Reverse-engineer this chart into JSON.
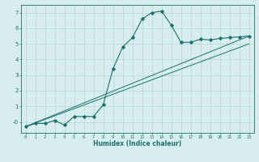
{
  "xlabel": "Humidex (Indice chaleur)",
  "ylabel": "",
  "bg_color": "#d8eeee",
  "grid_color": "#b8d8d8",
  "line_color": "#1a7070",
  "xlim": [
    -0.5,
    23.5
  ],
  "ylim": [
    -0.7,
    7.5
  ],
  "xticks": [
    0,
    1,
    2,
    3,
    4,
    5,
    6,
    7,
    8,
    9,
    10,
    11,
    12,
    13,
    14,
    15,
    16,
    17,
    18,
    19,
    20,
    21,
    22,
    23
  ],
  "yticks": [
    0,
    1,
    2,
    3,
    4,
    5,
    6,
    7
  ],
  "curve1_x": [
    0,
    1,
    2,
    3,
    4,
    5,
    6,
    7,
    8,
    9,
    10,
    11,
    12,
    13,
    14,
    15,
    16,
    17,
    18,
    19,
    20,
    21,
    22,
    23
  ],
  "curve1_y": [
    -0.3,
    -0.1,
    -0.1,
    0.1,
    -0.2,
    0.35,
    0.35,
    0.35,
    1.1,
    3.4,
    4.8,
    5.4,
    6.6,
    7.0,
    7.1,
    6.2,
    5.1,
    5.1,
    5.3,
    5.25,
    5.35,
    5.4,
    5.45,
    5.5
  ],
  "line2_x": [
    0,
    23
  ],
  "line2_y": [
    -0.3,
    5.5
  ],
  "line3_x": [
    0,
    23
  ],
  "line3_y": [
    -0.3,
    5.0
  ]
}
